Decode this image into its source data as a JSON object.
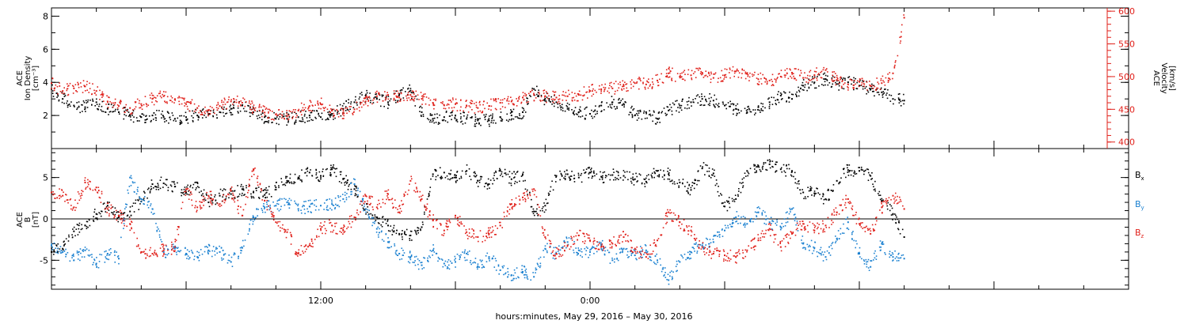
{
  "chart_data": [
    {
      "type": "scatter",
      "panel": "plasma",
      "ylabel_left": [
        "ACE",
        "Ion Density",
        "[cm⁻³]"
      ],
      "ylabel_right": [
        "ACE",
        "Velocity",
        "[km/s]"
      ],
      "yticks_left": [
        "2",
        "4",
        "6",
        "8"
      ],
      "yticks_right": [
        "400",
        "450",
        "500",
        "550",
        "600"
      ],
      "ylim_left": [
        0,
        8.5
      ],
      "ylim_right": [
        390,
        605
      ],
      "right_axis_color": "#e0201a",
      "grid": false,
      "series": [
        {
          "color": "#000000",
          "axis": "left",
          "x_hours": [
            0,
            0.5,
            1,
            1.5,
            2,
            2.5,
            3,
            3.5,
            4,
            4.5,
            5,
            5.5,
            6,
            6.5,
            7,
            7.5,
            8,
            8.5,
            9,
            9.5,
            10,
            10.5,
            11,
            11.5,
            12,
            12.5,
            13,
            13.5,
            14,
            14.5,
            15,
            15.5,
            16,
            16.5,
            17,
            17.5,
            18,
            18.5,
            19,
            19.5,
            20,
            20.5,
            21,
            21.5,
            22,
            22.5,
            23,
            23.5,
            24,
            24.5,
            25,
            25.5,
            26,
            26.5,
            27,
            27.5,
            28,
            28.5,
            29,
            29.5,
            30,
            30.5,
            31,
            31.5,
            32,
            32.5,
            33,
            33.5,
            34,
            34.5,
            35,
            35.5,
            36,
            36.5,
            37,
            37.5,
            38
          ],
          "values": [
            3.6,
            3.0,
            2.6,
            2.5,
            2.8,
            2.4,
            2.2,
            2.0,
            1.9,
            2.0,
            1.9,
            1.8,
            1.9,
            2.0,
            2.1,
            2.2,
            2.4,
            2.6,
            2.2,
            1.9,
            1.8,
            1.8,
            1.9,
            2.0,
            1.9,
            2.1,
            2.4,
            2.8,
            3.2,
            3.0,
            2.8,
            3.3,
            3.5,
            2.2,
            1.8,
            1.9,
            2.0,
            1.8,
            1.7,
            1.7,
            1.9,
            2.0,
            2.2,
            3.6,
            3.0,
            2.8,
            2.4,
            2.2,
            2.1,
            2.6,
            2.8,
            2.7,
            2.0,
            2.2,
            1.8,
            2.3,
            2.6,
            2.8,
            3.0,
            2.9,
            2.6,
            2.4,
            2.2,
            2.5,
            2.8,
            3.2,
            3.0,
            3.8,
            4.0,
            4.2,
            3.9,
            4.0,
            3.8,
            3.6,
            3.4,
            3.0,
            2.9
          ]
        },
        {
          "color": "#e0201a",
          "axis": "right",
          "x_hours": [
            0,
            0.5,
            1,
            1.5,
            2,
            2.5,
            3,
            3.5,
            4,
            4.5,
            5,
            5.5,
            6,
            6.5,
            7,
            7.5,
            8,
            8.5,
            9,
            9.5,
            10,
            10.5,
            11,
            11.5,
            12,
            12.5,
            13,
            13.5,
            14,
            14.5,
            15,
            15.5,
            16,
            16.5,
            17,
            17.5,
            18,
            18.5,
            19,
            19.5,
            20,
            20.5,
            21,
            21.5,
            22,
            22.5,
            23,
            23.5,
            24,
            24.5,
            25,
            25.5,
            26,
            26.5,
            27,
            27.5,
            28,
            28.5,
            29,
            29.5,
            30,
            30.5,
            31,
            31.5,
            32,
            32.5,
            33,
            33.5,
            34,
            34.5,
            35,
            35.5,
            36,
            36.5,
            37,
            37.5,
            38
          ],
          "values": [
            490,
            478,
            482,
            485,
            478,
            462,
            455,
            452,
            458,
            466,
            470,
            465,
            458,
            452,
            448,
            455,
            462,
            460,
            452,
            445,
            442,
            440,
            448,
            455,
            458,
            448,
            445,
            450,
            462,
            470,
            472,
            468,
            472,
            466,
            460,
            456,
            458,
            455,
            452,
            455,
            460,
            462,
            468,
            472,
            470,
            468,
            470,
            472,
            478,
            480,
            482,
            486,
            490,
            488,
            494,
            505,
            500,
            502,
            506,
            498,
            502,
            508,
            504,
            496,
            494,
            500,
            506,
            498,
            502,
            510,
            495,
            488,
            492,
            486,
            490,
            505,
            590
          ]
        }
      ]
    },
    {
      "type": "scatter",
      "panel": "magnetic-field",
      "ylabel_left": [
        "ACE",
        "B",
        "[nT]"
      ],
      "yticks_left": [
        "-5",
        "0",
        "5"
      ],
      "ylim_left": [
        -8.5,
        8.5
      ],
      "zero_line": true,
      "grid": false,
      "series": [
        {
          "name": "Bx",
          "label_main": "B",
          "label_sub": "x",
          "color": "#000000",
          "x_hours": [
            0,
            0.5,
            1,
            1.5,
            2,
            2.5,
            3,
            3.5,
            4,
            4.5,
            5,
            5.5,
            6,
            6.5,
            7,
            7.5,
            8,
            8.5,
            9,
            9.5,
            10,
            10.5,
            11,
            11.5,
            12,
            12.5,
            13,
            13.5,
            14,
            14.5,
            15,
            15.5,
            16,
            16.5,
            17,
            17.5,
            18,
            18.5,
            19,
            19.5,
            20,
            20.5,
            21,
            21.5,
            22,
            22.5,
            23,
            23.5,
            24,
            24.5,
            25,
            25.5,
            26,
            26.5,
            27,
            27.5,
            28,
            28.5,
            29,
            29.5,
            30,
            30.5,
            31,
            31.5,
            32,
            32.5,
            33,
            33.5,
            34,
            34.5,
            35,
            35.5,
            36,
            36.5,
            37,
            37.5,
            38
          ],
          "values": [
            -4,
            -3.6,
            -1.5,
            -0.8,
            0.6,
            1.6,
            0.2,
            0.9,
            2.1,
            4.2,
            4.3,
            3.9,
            3.2,
            4.4,
            2.0,
            2.8,
            3.0,
            3.6,
            3.2,
            2.9,
            3.8,
            4.6,
            5.0,
            5.6,
            5.2,
            6.0,
            4.8,
            3.6,
            1.2,
            0.2,
            -0.8,
            -1.8,
            -2.0,
            -1.0,
            5.4,
            5.6,
            5.0,
            5.8,
            4.6,
            4.2,
            5.8,
            4.8,
            5.4,
            0.9,
            1.6,
            5.2,
            5.4,
            5.0,
            5.6,
            5.1,
            5.3,
            5.2,
            4.8,
            4.5,
            5.8,
            5.4,
            4.4,
            3.5,
            6.1,
            5.5,
            1.5,
            2.4,
            5.8,
            6.4,
            6.6,
            6.0,
            5.8,
            3.2,
            3.1,
            2.4,
            4.6,
            5.9,
            5.8,
            5.2,
            2.2,
            0.6,
            -2.2
          ]
        },
        {
          "name": "By",
          "label_main": "B",
          "label_sub": "y",
          "color": "#1a80d0",
          "x_hours": [
            0,
            0.5,
            1,
            1.5,
            2,
            2.5,
            3,
            3.5,
            4,
            4.5,
            5,
            5.5,
            6,
            6.5,
            7,
            7.5,
            8,
            8.5,
            9,
            9.5,
            10,
            10.5,
            11,
            11.5,
            12,
            12.5,
            13,
            13.5,
            14,
            14.5,
            15,
            15.5,
            16,
            16.5,
            17,
            17.5,
            18,
            18.5,
            19,
            19.5,
            20,
            20.5,
            21,
            21.5,
            22,
            22.5,
            23,
            23.5,
            24,
            24.5,
            25,
            25.5,
            26,
            26.5,
            27,
            27.5,
            28,
            28.5,
            29,
            29.5,
            30,
            30.5,
            31,
            31.5,
            32,
            32.5,
            33,
            33.5,
            34,
            34.5,
            35,
            35.5,
            36,
            36.5,
            37,
            37.5,
            38
          ],
          "values": [
            -3.2,
            -4.0,
            -5.0,
            -3.8,
            -5.4,
            -4.2,
            -4.8,
            5.0,
            2.4,
            1.2,
            -4.0,
            -3.6,
            -4.2,
            -4.6,
            -3.8,
            -4.0,
            -5.2,
            -3.5,
            0.2,
            1.4,
            1.6,
            2.0,
            1.2,
            1.5,
            1.6,
            1.8,
            2.4,
            4.2,
            1.2,
            -1.2,
            -2.8,
            -4.2,
            -4.6,
            -5.6,
            -3.8,
            -5.4,
            -5.2,
            -4.2,
            -5.8,
            -4.6,
            -6.2,
            -6.8,
            -6.4,
            -7.0,
            -3.6,
            -4.2,
            -2.8,
            -3.8,
            -4.0,
            -3.2,
            -5.0,
            -3.6,
            -4.4,
            -3.8,
            -5.0,
            -7.4,
            -5.2,
            -4.0,
            -3.2,
            -2.8,
            -1.4,
            0.2,
            -0.6,
            0.8,
            -0.4,
            -1.0,
            1.2,
            -3.0,
            -3.5,
            -4.6,
            -2.4,
            -0.4,
            -4.2,
            -5.8,
            -3.0,
            -4.6,
            -4.8
          ]
        },
        {
          "name": "Bz",
          "label_main": "B",
          "label_sub": "z",
          "color": "#e0201a",
          "x_hours": [
            0,
            0.5,
            1,
            1.5,
            2,
            2.5,
            3,
            3.5,
            4,
            4.5,
            5,
            5.5,
            6,
            6.5,
            7,
            7.5,
            8,
            8.5,
            9,
            9.5,
            10,
            10.5,
            11,
            11.5,
            12,
            12.5,
            13,
            13.5,
            14,
            14.5,
            15,
            15.5,
            16,
            16.5,
            17,
            17.5,
            18,
            18.5,
            19,
            19.5,
            20,
            20.5,
            21,
            21.5,
            22,
            22.5,
            23,
            23.5,
            24,
            24.5,
            25,
            25.5,
            26,
            26.5,
            27,
            27.5,
            28,
            28.5,
            29,
            29.5,
            30,
            30.5,
            31,
            31.5,
            32,
            32.5,
            33,
            33.5,
            34,
            34.5,
            35,
            35.5,
            36,
            36.5,
            37,
            37.5,
            38
          ],
          "values": [
            3.2,
            2.8,
            1.4,
            4.4,
            3.8,
            1.2,
            0.4,
            -0.6,
            -4.0,
            -4.2,
            -3.8,
            -3.4,
            3.6,
            1.4,
            2.8,
            1.8,
            3.4,
            0.4,
            6.0,
            2.2,
            -0.4,
            -1.6,
            -4.2,
            -3.2,
            -1.2,
            -0.8,
            -1.4,
            0.2,
            2.8,
            1.4,
            3.0,
            0.8,
            4.6,
            2.4,
            -0.2,
            -1.4,
            0.4,
            -1.6,
            -2.2,
            -1.8,
            -0.8,
            1.8,
            2.6,
            3.6,
            -2.2,
            -4.2,
            -3.2,
            -2.0,
            -2.6,
            -3.4,
            -3.0,
            -2.2,
            -3.6,
            -4.6,
            -2.6,
            0.8,
            -0.4,
            -1.4,
            -3.4,
            -4.2,
            -4.4,
            -4.6,
            -3.8,
            -2.6,
            -1.2,
            -3.4,
            -1.8,
            -0.6,
            -1.4,
            -0.8,
            0.8,
            2.4,
            -0.6,
            -1.8,
            1.4,
            2.8,
            1.2
          ]
        }
      ]
    }
  ],
  "xaxis": {
    "title": "hours:minutes, May 29, 2016 – May 30, 2016",
    "tick_labels": [
      {
        "hour": 12,
        "label": "12:00"
      },
      {
        "hour": 24,
        "label": "0:00"
      }
    ],
    "range_hours": [
      0,
      48
    ],
    "minor_every_hours": 2
  }
}
